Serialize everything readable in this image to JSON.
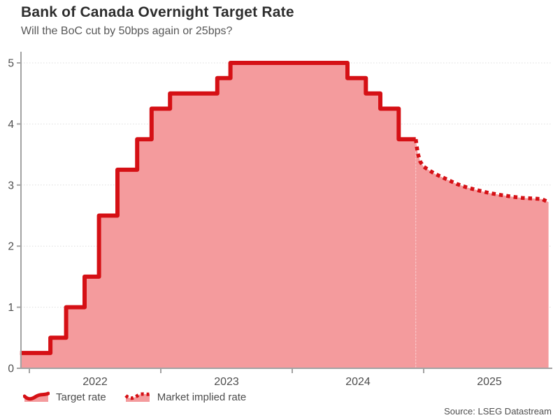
{
  "header": {
    "title": "Bank of Canada Overnight Target Rate",
    "subtitle": "Will the BoC cut by 50bps again or 25bps?"
  },
  "source_note": "Source: LSEG Datastream",
  "colors": {
    "line_red": "#d51015",
    "fill_pink": "#f49b9d",
    "axis_gray": "#a3a3a3",
    "grid_gray": "#dedede",
    "tick_text": "#4d4d4d"
  },
  "legend": {
    "items": [
      {
        "label": "Target rate",
        "style": "solid"
      },
      {
        "label": "Market implied rate",
        "style": "dotted"
      }
    ]
  },
  "chart_data": {
    "type": "line",
    "title": "Bank of Canada Overnight Target Rate",
    "subtitle": "Will the BoC cut by 50bps again or 25bps?",
    "xlabel": "",
    "ylabel": "",
    "xlim": [
      2021.93,
      2025.96
    ],
    "ylim": [
      0,
      5.15
    ],
    "grid": "horizontal-dotted",
    "legend_position": "bottom-left",
    "y_ticks": [
      {
        "value": 0,
        "label": "0"
      },
      {
        "value": 1,
        "label": "1"
      },
      {
        "value": 2,
        "label": "2"
      },
      {
        "value": 3,
        "label": "3"
      },
      {
        "value": 4,
        "label": "4"
      },
      {
        "value": 5,
        "label": "5"
      }
    ],
    "x_ticks": [
      {
        "year": 2022,
        "label": "2022"
      },
      {
        "year": 2023,
        "label": "2023"
      },
      {
        "year": 2024,
        "label": "2024"
      },
      {
        "year": 2025,
        "label": "2025"
      }
    ],
    "series": [
      {
        "name": "Target rate",
        "style": "step-solid",
        "fill": true,
        "steps": [
          {
            "from": 2021.93,
            "to": 2022.16,
            "rate": 0.25
          },
          {
            "from": 2022.16,
            "to": 2022.28,
            "rate": 0.5
          },
          {
            "from": 2022.28,
            "to": 2022.42,
            "rate": 1.0
          },
          {
            "from": 2022.42,
            "to": 2022.53,
            "rate": 1.5
          },
          {
            "from": 2022.53,
            "to": 2022.67,
            "rate": 2.5
          },
          {
            "from": 2022.67,
            "to": 2022.82,
            "rate": 3.25
          },
          {
            "from": 2022.82,
            "to": 2022.93,
            "rate": 3.75
          },
          {
            "from": 2022.93,
            "to": 2023.07,
            "rate": 4.25
          },
          {
            "from": 2023.07,
            "to": 2023.43,
            "rate": 4.5
          },
          {
            "from": 2023.43,
            "to": 2023.53,
            "rate": 4.75
          },
          {
            "from": 2023.53,
            "to": 2024.42,
            "rate": 5.0
          },
          {
            "from": 2024.42,
            "to": 2024.56,
            "rate": 4.75
          },
          {
            "from": 2024.56,
            "to": 2024.67,
            "rate": 4.5
          },
          {
            "from": 2024.67,
            "to": 2024.81,
            "rate": 4.25
          },
          {
            "from": 2024.81,
            "to": 2024.94,
            "rate": 3.75
          }
        ]
      },
      {
        "name": "Market implied rate",
        "style": "dotted",
        "fill": true,
        "points": [
          [
            2024.94,
            3.75
          ],
          [
            2024.955,
            3.52
          ],
          [
            2024.975,
            3.38
          ],
          [
            2025.0,
            3.3
          ],
          [
            2025.08,
            3.19
          ],
          [
            2025.17,
            3.1
          ],
          [
            2025.25,
            3.02
          ],
          [
            2025.33,
            2.96
          ],
          [
            2025.42,
            2.91
          ],
          [
            2025.5,
            2.87
          ],
          [
            2025.58,
            2.84
          ],
          [
            2025.67,
            2.81
          ],
          [
            2025.75,
            2.79
          ],
          [
            2025.83,
            2.78
          ],
          [
            2025.9,
            2.77
          ],
          [
            2025.95,
            2.72
          ]
        ]
      }
    ]
  }
}
